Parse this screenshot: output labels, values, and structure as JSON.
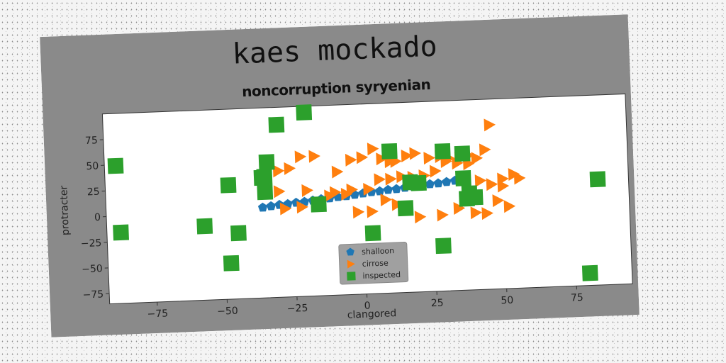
{
  "chart_data": {
    "type": "scatter",
    "title": "kaes mockado",
    "subtitle": "noncorruption syryenian",
    "xlabel": "clangored",
    "ylabel": "protracter",
    "xlim": [
      -92,
      95
    ],
    "ylim": [
      -85,
      100
    ],
    "xticks": [
      -75,
      -50,
      -25,
      0,
      25,
      50,
      75
    ],
    "yticks": [
      -75,
      -50,
      -25,
      0,
      25,
      50,
      75
    ],
    "legend_position": "lower-center",
    "series": [
      {
        "name": "shalloon",
        "marker": "pentagon",
        "color": "#1f77b4",
        "x": [
          -36,
          -33,
          -30,
          -27,
          -24,
          -21,
          -18,
          -15,
          -12,
          -9,
          -6,
          -3,
          0,
          3,
          6,
          9,
          12,
          15,
          18,
          21,
          24,
          27,
          30,
          33,
          36
        ],
        "y": [
          3,
          4,
          5,
          5.5,
          6.5,
          7,
          8,
          9,
          9.5,
          10.5,
          11,
          12,
          13,
          14,
          14.5,
          15.5,
          16,
          17,
          18,
          18.5,
          19.5,
          20,
          21,
          22,
          23
        ]
      },
      {
        "name": "cirrose",
        "marker": "triangle-right",
        "color": "#ff7f0e",
        "x": [
          -30,
          -26,
          -22,
          -17,
          -9,
          -4,
          0,
          4,
          7,
          10,
          12,
          16,
          19,
          24,
          28,
          31,
          35,
          38,
          41,
          44,
          46,
          50,
          54,
          56,
          -30,
          -20,
          -10,
          -4,
          2,
          6,
          10,
          14,
          18,
          22,
          26,
          30,
          34,
          38,
          42,
          46,
          50,
          -28,
          -22,
          -12,
          -6,
          -2,
          3,
          8,
          12,
          20,
          28,
          34,
          40,
          44,
          48,
          52
        ],
        "y": [
          18,
          40,
          51,
          51,
          35,
          46,
          48,
          56,
          46,
          43,
          43,
          48,
          50,
          45,
          46,
          44,
          44,
          46,
          43,
          51,
          75,
          22,
          26,
          22,
          38,
          18,
          15,
          17,
          17,
          26,
          26,
          28,
          27,
          28,
          32,
          41,
          39,
          38,
          21,
          17,
          15,
          1,
          2,
          12,
          13,
          -5,
          -5,
          6,
          1,
          -12,
          -11,
          -5,
          -10,
          -11,
          1,
          -5
        ]
      },
      {
        "name": "inspected",
        "marker": "square",
        "color": "#2ca02c",
        "x": [
          -88,
          -87,
          -57,
          -48,
          -45,
          -48,
          -34,
          -35,
          -35,
          -36,
          -30,
          -20,
          -16,
          3,
          10,
          15,
          17,
          20,
          28,
          29,
          36,
          36,
          37,
          38,
          40,
          80,
          84
        ],
        "y": [
          49,
          -16,
          -13,
          26,
          -21,
          -50,
          47,
          33,
          18,
          32,
          83,
          94,
          4,
          -26,
          53,
          -3,
          22,
          21,
          -41,
          51,
          48,
          24,
          4,
          9,
          5,
          -73,
          18
        ]
      }
    ]
  }
}
